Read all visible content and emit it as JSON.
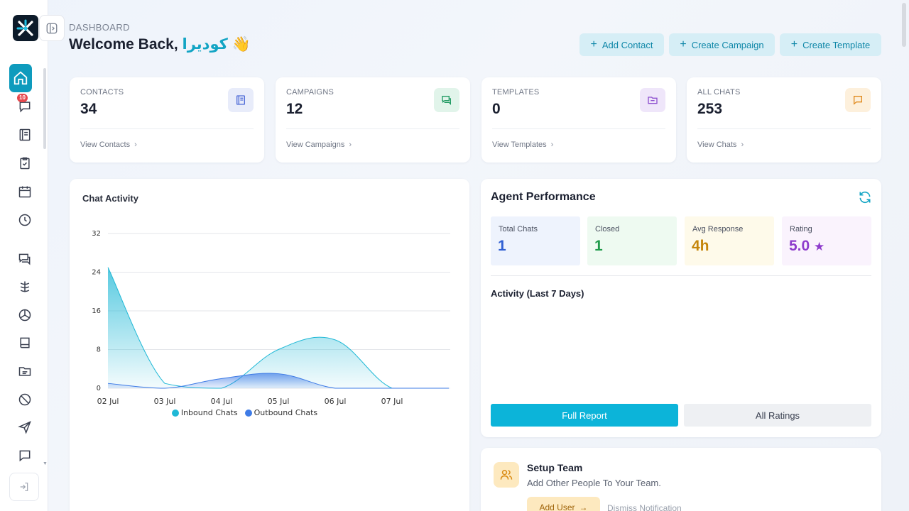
{
  "header": {
    "breadcrumb": "DASHBOARD",
    "welcome_prefix": "Welcome Back,",
    "user_name": "كوديرا",
    "wave_emoji": "👋",
    "actions": [
      {
        "label": "Add Contact"
      },
      {
        "label": "Create Campaign"
      },
      {
        "label": "Create Template"
      }
    ]
  },
  "sidebar": {
    "badge": "10",
    "items": [
      {
        "icon": "home-icon",
        "active": true
      },
      {
        "icon": "chat-bubble-icon",
        "badge": true
      },
      {
        "icon": "contacts-book-icon"
      },
      {
        "icon": "clipboard-check-icon"
      },
      {
        "icon": "calendar-icon"
      },
      {
        "icon": "clock-icon"
      },
      {
        "icon": "messages-icon"
      },
      {
        "icon": "flow-icon"
      },
      {
        "icon": "box-icon"
      },
      {
        "icon": "book-icon"
      },
      {
        "icon": "folder-icon"
      },
      {
        "icon": "block-icon"
      },
      {
        "icon": "send-icon"
      },
      {
        "icon": "comment-icon"
      }
    ]
  },
  "stats": [
    {
      "label": "CONTACTS",
      "value": "34",
      "link": "View Contacts",
      "icon": "contacts-book-icon",
      "color": "#4f6bd8",
      "bg": "#e8ecfa"
    },
    {
      "label": "CAMPAIGNS",
      "value": "12",
      "link": "View Campaigns",
      "icon": "chat-icon",
      "color": "#1f9a62",
      "bg": "#e1f4ea"
    },
    {
      "label": "TEMPLATES",
      "value": "0",
      "link": "View Templates",
      "icon": "folder-icon",
      "color": "#8d4fcf",
      "bg": "#efe6fa"
    },
    {
      "label": "ALL CHATS",
      "value": "253",
      "link": "View Chats",
      "icon": "message-icon",
      "color": "#e08a1e",
      "bg": "#fdf0dc"
    }
  ],
  "chart_data": {
    "type": "area",
    "title": "Chat Activity",
    "categories": [
      "02 Jul",
      "03 Jul",
      "04 Jul",
      "05 Jul",
      "06 Jul",
      "07 Jul"
    ],
    "yticks": [
      0,
      8,
      16,
      24,
      32
    ],
    "ylim": [
      0,
      32
    ],
    "series": [
      {
        "name": "Inbound Chats",
        "color": "#1fb8d6",
        "values": [
          25,
          1,
          0,
          8,
          10,
          0
        ]
      },
      {
        "name": "Outbound Chats",
        "color": "#3e7be6",
        "values": [
          1,
          0,
          2,
          3,
          0,
          0
        ]
      }
    ],
    "legend": "bottom"
  },
  "agent": {
    "title": "Agent Performance",
    "metrics": [
      {
        "label": "Total Chats",
        "value": "1",
        "color": "#2f5fd3",
        "bg": "#eef3fd"
      },
      {
        "label": "Closed",
        "value": "1",
        "color": "#1f9a4a",
        "bg": "#eefaf1"
      },
      {
        "label": "Avg Response",
        "value": "4h",
        "color": "#c5860b",
        "bg": "#fefaea"
      },
      {
        "label": "Rating",
        "value": "5.0",
        "star": "★",
        "color": "#8e3ccc",
        "bg": "#faf3fd"
      }
    ],
    "activity_title": "Activity (Last 7 Days)",
    "full_report": "Full Report",
    "all_ratings": "All Ratings"
  },
  "setup": {
    "title": "Setup Team",
    "description": "Add Other People To Your Team.",
    "add_user": "Add User",
    "add_user_arrow": "→",
    "dismiss": "Dismiss Notification"
  }
}
